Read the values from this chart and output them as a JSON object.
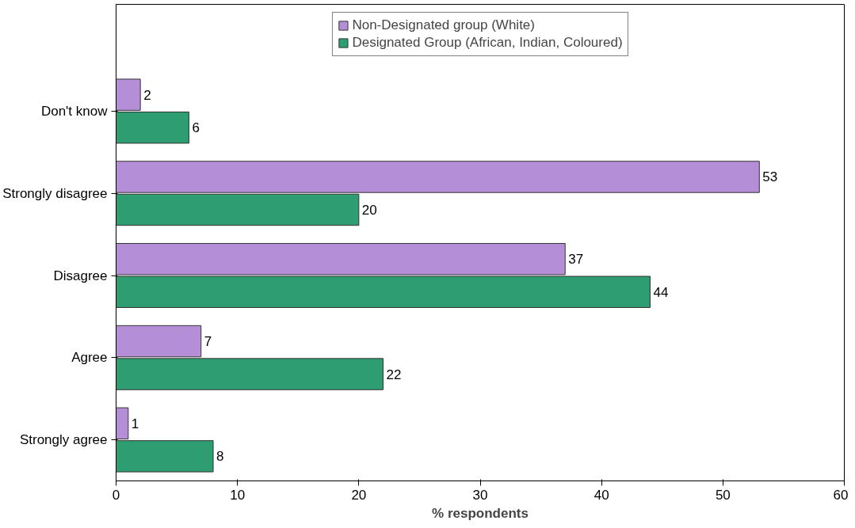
{
  "chart_data": {
    "type": "bar",
    "orientation": "horizontal",
    "xlabel": "% respondents",
    "categories": [
      "Don't know",
      "Strongly disagree",
      "Disagree",
      "Agree",
      "Strongly agree"
    ],
    "series": [
      {
        "name": "Non-Designated group (White)",
        "color": "#b48fd8",
        "values": [
          2,
          53,
          37,
          7,
          1
        ]
      },
      {
        "name": "Designated Group (African, Indian, Coloured)",
        "color": "#2e9e72",
        "values": [
          6,
          20,
          44,
          22,
          8
        ]
      }
    ],
    "xlim": [
      0,
      60
    ],
    "xticks": [
      0,
      10,
      20,
      30,
      40,
      50,
      60
    ],
    "grid": false,
    "legend": "top",
    "data_labels": true
  }
}
